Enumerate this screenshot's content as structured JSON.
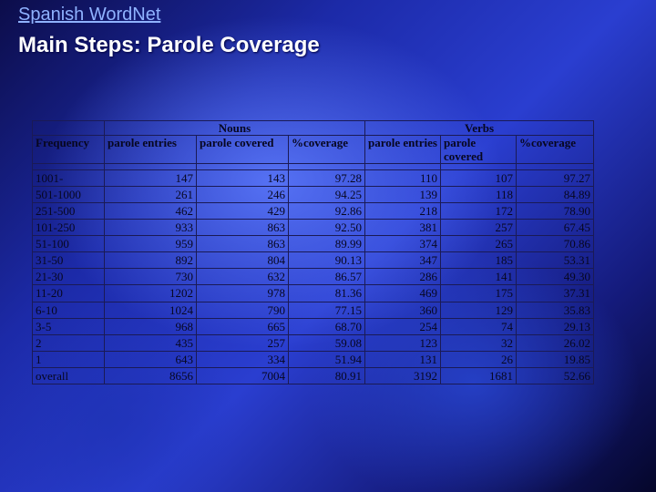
{
  "header": {
    "link_text": "Spanish WordNet",
    "title": "Main Steps: Parole Coverage"
  },
  "table": {
    "groups": {
      "nouns": "Nouns",
      "verbs": "Verbs"
    },
    "columns": {
      "frequency": "Frequency",
      "noun_entries": "parole entries",
      "noun_covered": "parole covered",
      "noun_coverage": "%coverage",
      "verb_entries": "parole entries",
      "verb_covered": "parole covered",
      "verb_coverage": "%coverage"
    },
    "rows": [
      [
        "1001-",
        "147",
        "143",
        "97.28",
        "110",
        "107",
        "97.27"
      ],
      [
        "501-1000",
        "261",
        "246",
        "94.25",
        "139",
        "118",
        "84.89"
      ],
      [
        "251-500",
        "462",
        "429",
        "92.86",
        "218",
        "172",
        "78.90"
      ],
      [
        "101-250",
        "933",
        "863",
        "92.50",
        "381",
        "257",
        "67.45"
      ],
      [
        "51-100",
        "959",
        "863",
        "89.99",
        "374",
        "265",
        "70.86"
      ],
      [
        "31-50",
        "892",
        "804",
        "90.13",
        "347",
        "185",
        "53.31"
      ],
      [
        "21-30",
        "730",
        "632",
        "86.57",
        "286",
        "141",
        "49.30"
      ],
      [
        "11-20",
        "1202",
        "978",
        "81.36",
        "469",
        "175",
        "37.31"
      ],
      [
        "6-10",
        "1024",
        "790",
        "77.15",
        "360",
        "129",
        "35.83"
      ],
      [
        "3-5",
        "968",
        "665",
        "68.70",
        "254",
        "74",
        "29.13"
      ],
      [
        "2",
        "435",
        "257",
        "59.08",
        "123",
        "32",
        "26.02"
      ],
      [
        "1",
        "643",
        "334",
        "51.94",
        "131",
        "26",
        "19.85"
      ],
      [
        "overall",
        "8656",
        "7004",
        "80.91",
        "3192",
        "1681",
        "52.66"
      ]
    ]
  }
}
